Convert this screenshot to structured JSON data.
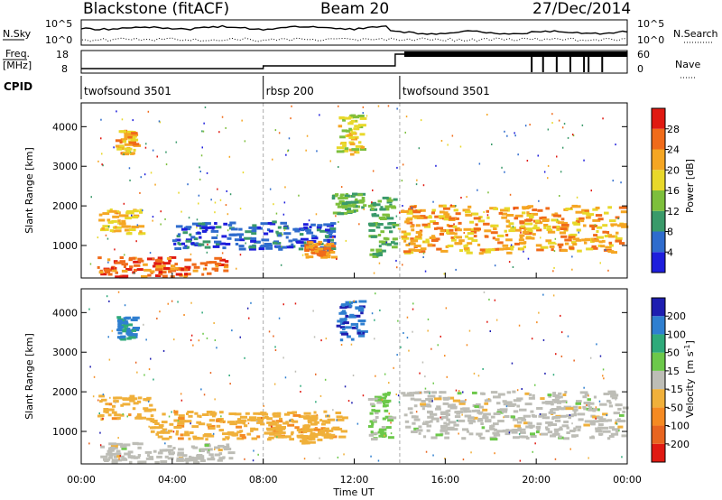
{
  "header": {
    "title": "Blackstone (fitACF)",
    "beam": "Beam 20",
    "date": "27/Dec/2014"
  },
  "noise_panel": {
    "left_label": "N.Sky",
    "right_label": "N.Search",
    "left_ticks": [
      "10^5",
      "10^0"
    ],
    "right_ticks": [
      "10^5",
      "10^0"
    ]
  },
  "freq_panel": {
    "left_label_1": "Freq.",
    "left_label_2": "[MHz]",
    "right_label": "Nave",
    "left_ticks": [
      "18",
      "8"
    ],
    "right_ticks": [
      "60",
      "0"
    ]
  },
  "cpid_panel": {
    "label": "CPID",
    "segments": [
      {
        "name": "twofsound 3501",
        "start_hour": 0,
        "end_hour": 8
      },
      {
        "name": "rbsp 200",
        "start_hour": 8,
        "end_hour": 14
      },
      {
        "name": "twofsound 3501",
        "start_hour": 14,
        "end_hour": 24
      }
    ]
  },
  "power_panel": {
    "ylabel": "Slant Range [km]",
    "yticks": [
      "1000",
      "2000",
      "3000",
      "4000"
    ],
    "colorbar_label": "Power [dB]",
    "colorbar_ticks": [
      "4",
      "8",
      "12",
      "16",
      "20",
      "24",
      "28"
    ],
    "colors": [
      "#1e1edc",
      "#2f6ccd",
      "#3a9a6a",
      "#7dbf3c",
      "#e8d82a",
      "#f5a623",
      "#f06b1a",
      "#e01a12"
    ]
  },
  "velocity_panel": {
    "ylabel": "Slant Range [km]",
    "yticks": [
      "1000",
      "2000",
      "3000",
      "4000"
    ],
    "colorbar_label_1": "Velocity",
    "colorbar_label_2": "[m s",
    "colorbar_label_sup": "-1",
    "colorbar_label_3": "]",
    "colorbar_ticks": [
      "200",
      "100",
      "50",
      "15",
      "-15",
      "-50",
      "-100",
      "-200"
    ],
    "colors": [
      "#1e1eb0",
      "#2f7fd0",
      "#2faa7a",
      "#6cc84a",
      "#bdbdb6",
      "#f0b03a",
      "#f58a22",
      "#e86520",
      "#e01a12"
    ]
  },
  "xaxis": {
    "label": "Time UT",
    "ticks": [
      "00:00",
      "04:00",
      "08:00",
      "12:00",
      "16:00",
      "20:00",
      "00:00"
    ]
  },
  "chart_data": [
    {
      "type": "heatmap",
      "quantity": "Power",
      "units": "dB",
      "x_range_hours": [
        0,
        24
      ],
      "ylim": [
        180,
        4600
      ],
      "clim": [
        0,
        32
      ],
      "regions": [
        {
          "t0": 0.7,
          "t1": 6.5,
          "r0": 200,
          "r1": 700,
          "power": 27
        },
        {
          "t0": 0.7,
          "t1": 2.6,
          "r0": 1300,
          "r1": 1900,
          "power": 20
        },
        {
          "t0": 1.5,
          "t1": 2.3,
          "r0": 3300,
          "r1": 3900,
          "power": 22
        },
        {
          "t0": 4.0,
          "t1": 11.0,
          "r0": 900,
          "r1": 1600,
          "power": 6
        },
        {
          "t0": 9.8,
          "t1": 11.0,
          "r0": 700,
          "r1": 1100,
          "power": 24
        },
        {
          "t0": 11.0,
          "t1": 12.4,
          "r0": 1800,
          "r1": 2300,
          "power": 12
        },
        {
          "t0": 11.2,
          "t1": 12.3,
          "r0": 3300,
          "r1": 4300,
          "power": 18
        },
        {
          "t0": 12.6,
          "t1": 13.8,
          "r0": 700,
          "r1": 2200,
          "power": 12
        },
        {
          "t0": 14.0,
          "t1": 23.8,
          "r0": 800,
          "r1": 2000,
          "power": 22
        }
      ]
    },
    {
      "type": "heatmap",
      "quantity": "Velocity",
      "units": "m s^-1",
      "x_range_hours": [
        0,
        24
      ],
      "ylim": [
        180,
        4600
      ],
      "clim": [
        -250,
        250
      ],
      "regions": [
        {
          "t0": 0.7,
          "t1": 6.5,
          "r0": 200,
          "r1": 700,
          "velocity": 0
        },
        {
          "t0": 0.7,
          "t1": 3.0,
          "r0": 1300,
          "r1": 1900,
          "velocity": -60
        },
        {
          "t0": 1.5,
          "t1": 2.3,
          "r0": 3300,
          "r1": 3900,
          "velocity": 150
        },
        {
          "t0": 3.0,
          "t1": 11.5,
          "r0": 800,
          "r1": 1500,
          "velocity": -60
        },
        {
          "t0": 9.5,
          "t1": 11.0,
          "r0": 700,
          "r1": 1100,
          "velocity": -60
        },
        {
          "t0": 11.2,
          "t1": 12.3,
          "r0": 3300,
          "r1": 4300,
          "velocity": 180
        },
        {
          "t0": 12.6,
          "t1": 13.5,
          "r0": 800,
          "r1": 2000,
          "velocity": 40
        },
        {
          "t0": 14.0,
          "t1": 23.8,
          "r0": 800,
          "r1": 2000,
          "velocity": 0
        }
      ]
    }
  ]
}
